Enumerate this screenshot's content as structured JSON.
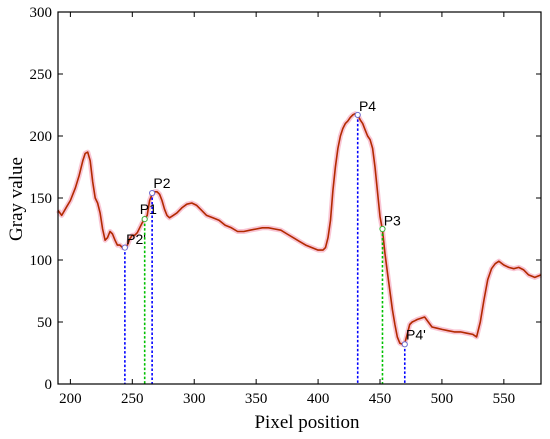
{
  "chart_data": {
    "type": "line",
    "xlabel": "Pixel position",
    "ylabel": "Gray value",
    "xlim": [
      190,
      580
    ],
    "ylim": [
      0,
      300
    ],
    "xticks": [
      200,
      250,
      300,
      350,
      400,
      450,
      500,
      550
    ],
    "yticks": [
      0,
      50,
      100,
      150,
      200,
      250,
      300
    ],
    "grid": false,
    "line_color": "#b22a00",
    "halo_color": "#f7b7c9",
    "series": [
      {
        "x": [
          190,
          193,
          197,
          200,
          204,
          207,
          210,
          212,
          214,
          216,
          218,
          220,
          222,
          224,
          226,
          228,
          230,
          232,
          234,
          236,
          238,
          240,
          242,
          244,
          246,
          248,
          250,
          252,
          254,
          256,
          258,
          260,
          262,
          264,
          266,
          268,
          270,
          272,
          274,
          276,
          278,
          280,
          283,
          286,
          290,
          294,
          298,
          302,
          306,
          310,
          315,
          320,
          325,
          330,
          335,
          340,
          345,
          350,
          355,
          360,
          365,
          370,
          375,
          380,
          385,
          390,
          395,
          400,
          404,
          406,
          408,
          410,
          412,
          414,
          416,
          418,
          420,
          422,
          424,
          426,
          428,
          430,
          432,
          434,
          436,
          438,
          440,
          442,
          444,
          446,
          448,
          450,
          452,
          454,
          456,
          458,
          460,
          462,
          464,
          466,
          468,
          470,
          472,
          474,
          476,
          478,
          480,
          483,
          486,
          489,
          492,
          496,
          500,
          505,
          510,
          515,
          520,
          525,
          528,
          531,
          534,
          537,
          540,
          543,
          546,
          550,
          554,
          558,
          562,
          566,
          570,
          575,
          580
        ],
        "values": [
          140,
          136,
          143,
          148,
          158,
          168,
          180,
          186,
          187,
          180,
          163,
          150,
          146,
          138,
          125,
          116,
          118,
          123,
          121,
          116,
          112,
          112,
          110,
          110,
          112,
          117,
          120,
          120,
          122,
          126,
          130,
          133,
          136,
          148,
          153,
          155,
          155,
          153,
          148,
          141,
          136,
          134,
          136,
          138,
          142,
          145,
          146,
          144,
          140,
          136,
          134,
          132,
          128,
          126,
          123,
          123,
          124,
          125,
          126,
          126,
          125,
          124,
          121,
          118,
          115,
          112,
          110,
          108,
          108,
          110,
          118,
          132,
          156,
          175,
          190,
          200,
          206,
          210,
          212,
          215,
          217,
          218,
          217,
          213,
          210,
          205,
          200,
          197,
          190,
          175,
          155,
          135,
          124,
          105,
          90,
          75,
          60,
          48,
          38,
          33,
          32,
          33,
          40,
          48,
          50,
          51,
          52,
          53,
          54,
          50,
          46,
          45,
          44,
          43,
          42,
          42,
          41,
          40,
          38,
          50,
          68,
          84,
          93,
          97,
          99,
          96,
          94,
          93,
          94,
          92,
          88,
          86,
          88
        ]
      }
    ],
    "markers": [
      {
        "label": "P2'",
        "x": 244,
        "y": 110,
        "line_color": "#0000ff",
        "marker_color": "#6c6ccf",
        "label_x": 245,
        "label_y": 113
      },
      {
        "label": "P1",
        "x": 260,
        "y": 133,
        "line_color": "#00c000",
        "marker_color": "#3cb43c",
        "label_x": 256,
        "label_y": 137
      },
      {
        "label": "P2",
        "x": 266,
        "y": 154,
        "line_color": "#0000ff",
        "marker_color": "#6c6ccf",
        "label_x": 267,
        "label_y": 158
      },
      {
        "label": "P4",
        "x": 432,
        "y": 217,
        "line_color": "#0000ff",
        "marker_color": "#6c6ccf",
        "label_x": 433,
        "label_y": 220
      },
      {
        "label": "P3",
        "x": 452,
        "y": 125,
        "line_color": "#00c000",
        "marker_color": "#3cb43c",
        "label_x": 453,
        "label_y": 128
      },
      {
        "label": "P4'",
        "x": 470,
        "y": 32,
        "line_color": "#0000ff",
        "marker_color": "#6c6ccf",
        "label_x": 471,
        "label_y": 36
      }
    ]
  }
}
